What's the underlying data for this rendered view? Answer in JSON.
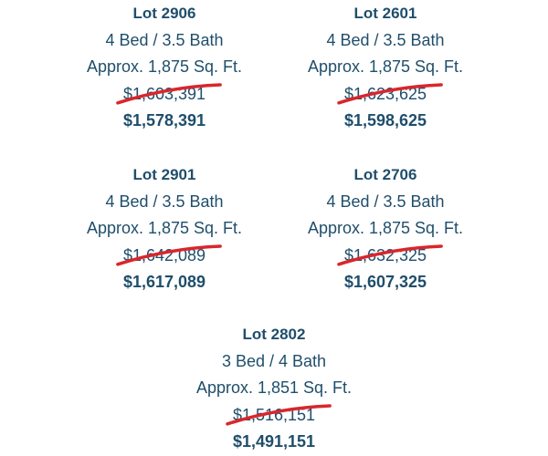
{
  "lots": [
    {
      "title": "Lot 2906",
      "beds": "4 Bed / 3.5 Bath",
      "area": "Approx. 1,875 Sq. Ft.",
      "old_price": "$1,603,391",
      "new_price": "$1,578,391"
    },
    {
      "title": "Lot 2601",
      "beds": "4 Bed / 3.5 Bath",
      "area": "Approx. 1,875 Sq. Ft.",
      "old_price": "$1,623,625",
      "new_price": "$1,598,625"
    },
    {
      "title": "Lot 2901",
      "beds": "4 Bed / 3.5 Bath",
      "area": "Approx. 1,875 Sq. Ft.",
      "old_price": "$1,642,089",
      "new_price": "$1,617,089"
    },
    {
      "title": "Lot 2706",
      "beds": "4 Bed / 3.5 Bath",
      "area": "Approx. 1,875 Sq. Ft.",
      "old_price": "$1,632,325",
      "new_price": "$1,607,325"
    },
    {
      "title": "Lot 2802",
      "beds": "3 Bed / 4 Bath",
      "area": "Approx. 1,851 Sq. Ft.",
      "old_price": "$1,516,151",
      "new_price": "$1,491,151"
    }
  ],
  "colors": {
    "text": "#1f4e6b",
    "strike": "#d9262c"
  }
}
